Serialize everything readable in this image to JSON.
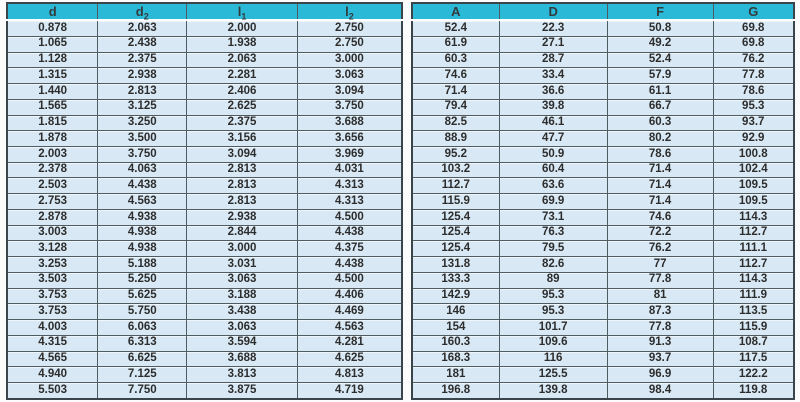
{
  "colors": {
    "header_bg": "#2bb9d8",
    "header_text": "#333b3d",
    "cell_bg": "#d8e9f5",
    "cell_text": "#2d2d2d",
    "grid_line": "#4f5d63",
    "outer_border": "#3a444b"
  },
  "chart_data": {
    "type": "table",
    "title": "",
    "layout": "two side-by-side tables, cyan header row, pale blue cells, dark grid lines",
    "left_table": {
      "headers": [
        {
          "base": "d",
          "sub": ""
        },
        {
          "base": "d",
          "sub": "2"
        },
        {
          "base": "l",
          "sub": "1"
        },
        {
          "base": "l",
          "sub": "2"
        }
      ],
      "rows": [
        [
          "0.878",
          "2.063",
          "2.000",
          "2.750"
        ],
        [
          "1.065",
          "2.438",
          "1.938",
          "2.750"
        ],
        [
          "1.128",
          "2.375",
          "2.063",
          "3.000"
        ],
        [
          "1.315",
          "2.938",
          "2.281",
          "3.063"
        ],
        [
          "1.440",
          "2.813",
          "2.406",
          "3.094"
        ],
        [
          "1.565",
          "3.125",
          "2.625",
          "3.750"
        ],
        [
          "1.815",
          "3.250",
          "2.375",
          "3.688"
        ],
        [
          "1.878",
          "3.500",
          "3.156",
          "3.656"
        ],
        [
          "2.003",
          "3.750",
          "3.094",
          "3.969"
        ],
        [
          "2.378",
          "4.063",
          "2.813",
          "4.031"
        ],
        [
          "2.503",
          "4.438",
          "2.813",
          "4.313"
        ],
        [
          "2.753",
          "4.563",
          "2.813",
          "4.313"
        ],
        [
          "2.878",
          "4.938",
          "2.938",
          "4.500"
        ],
        [
          "3.003",
          "4.938",
          "2.844",
          "4.438"
        ],
        [
          "3.128",
          "4.938",
          "3.000",
          "4.375"
        ],
        [
          "3.253",
          "5.188",
          "3.031",
          "4.438"
        ],
        [
          "3.503",
          "5.250",
          "3.063",
          "4.500"
        ],
        [
          "3.753",
          "5.625",
          "3.188",
          "4.406"
        ],
        [
          "3.753",
          "5.750",
          "3.438",
          "4.469"
        ],
        [
          "4.003",
          "6.063",
          "3.063",
          "4.563"
        ],
        [
          "4.315",
          "6.313",
          "3.594",
          "4.281"
        ],
        [
          "4.565",
          "6.625",
          "3.688",
          "4.625"
        ],
        [
          "4.940",
          "7.125",
          "3.813",
          "4.813"
        ],
        [
          "5.503",
          "7.750",
          "3.875",
          "4.719"
        ]
      ]
    },
    "right_table": {
      "headers": [
        "A",
        "D",
        "F",
        "G"
      ],
      "rows": [
        [
          "52.4",
          "22.3",
          "50.8",
          "69.8"
        ],
        [
          "61.9",
          "27.1",
          "49.2",
          "69.8"
        ],
        [
          "60.3",
          "28.7",
          "52.4",
          "76.2"
        ],
        [
          "74.6",
          "33.4",
          "57.9",
          "77.8"
        ],
        [
          "71.4",
          "36.6",
          "61.1",
          "78.6"
        ],
        [
          "79.4",
          "39.8",
          "66.7",
          "95.3"
        ],
        [
          "82.5",
          "46.1",
          "60.3",
          "93.7"
        ],
        [
          "88.9",
          "47.7",
          "80.2",
          "92.9"
        ],
        [
          "95.2",
          "50.9",
          "78.6",
          "100.8"
        ],
        [
          "103.2",
          "60.4",
          "71.4",
          "102.4"
        ],
        [
          "112.7",
          "63.6",
          "71.4",
          "109.5"
        ],
        [
          "115.9",
          "69.9",
          "71.4",
          "109.5"
        ],
        [
          "125.4",
          "73.1",
          "74.6",
          "114.3"
        ],
        [
          "125.4",
          "76.3",
          "72.2",
          "112.7"
        ],
        [
          "125.4",
          "79.5",
          "76.2",
          "111.1"
        ],
        [
          "131.8",
          "82.6",
          "77",
          "112.7"
        ],
        [
          "133.3",
          "89",
          "77.8",
          "114.3"
        ],
        [
          "142.9",
          "95.3",
          "81",
          "111.9"
        ],
        [
          "146",
          "95.3",
          "87.3",
          "113.5"
        ],
        [
          "154",
          "101.7",
          "77.8",
          "115.9"
        ],
        [
          "160.3",
          "109.6",
          "91.3",
          "108.7"
        ],
        [
          "168.3",
          "116",
          "93.7",
          "117.5"
        ],
        [
          "181",
          "125.5",
          "96.9",
          "122.2"
        ],
        [
          "196.8",
          "139.8",
          "98.4",
          "119.8"
        ]
      ]
    }
  }
}
